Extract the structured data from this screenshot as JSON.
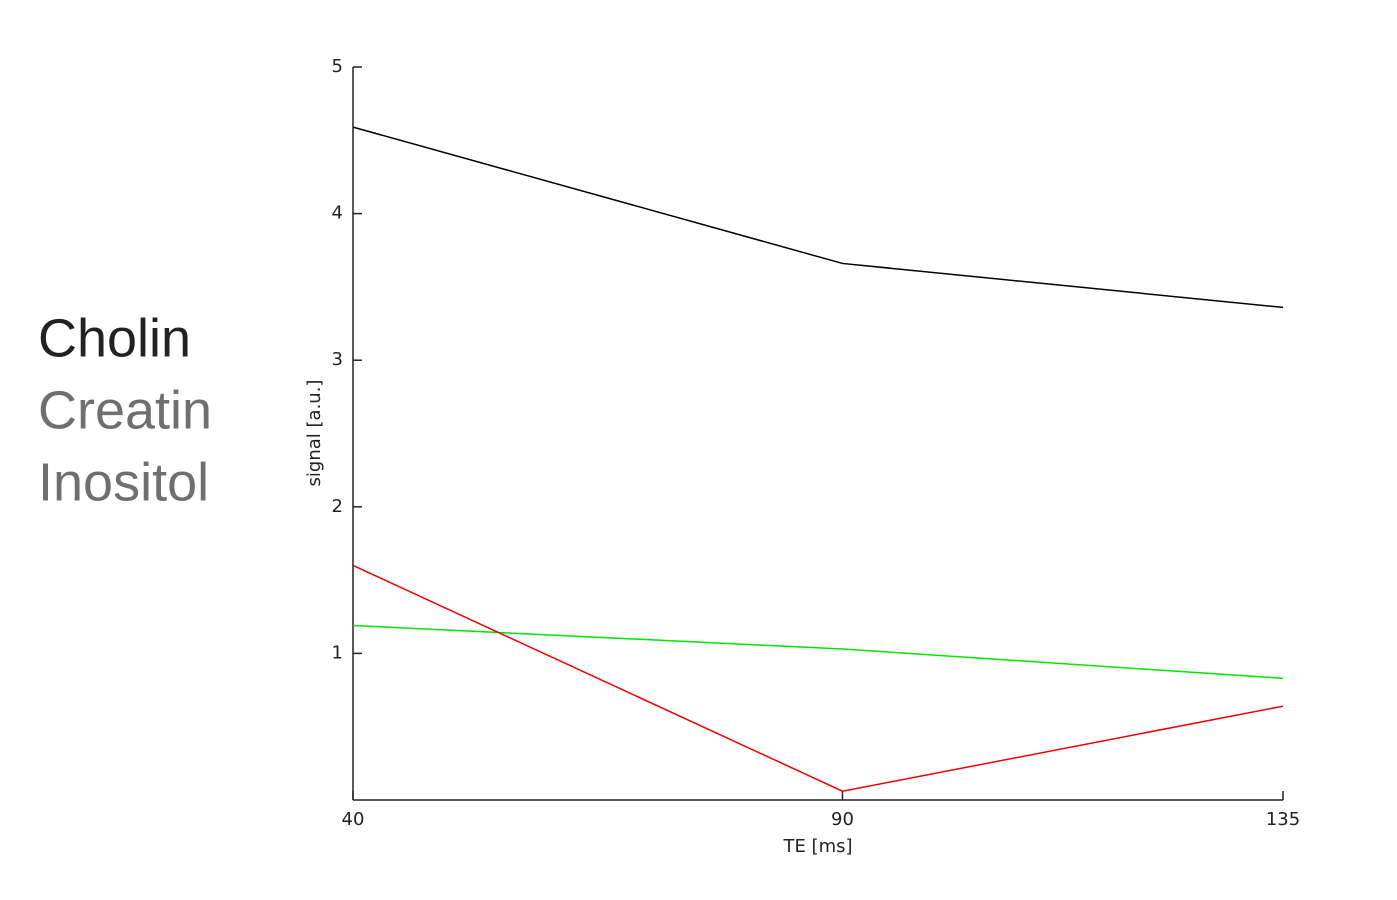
{
  "chart_data": {
    "type": "line",
    "x_label": "TE [ms]",
    "y_label": "signal [a.u.]",
    "x": [
      40,
      90,
      135
    ],
    "series": [
      {
        "name": "Cholin",
        "color": "#000000",
        "values": [
          4.59,
          3.66,
          3.36
        ]
      },
      {
        "name": "Creatin",
        "color": "#00e600",
        "values": [
          1.19,
          1.03,
          0.83
        ]
      },
      {
        "name": "Inositol",
        "color": "#ee0000",
        "values": [
          1.6,
          0.06,
          0.64
        ]
      }
    ],
    "xlim": [
      40,
      135
    ],
    "xticks": [
      40,
      90,
      135
    ],
    "ylim": [
      0,
      5
    ],
    "yticks": [
      1,
      2,
      3,
      4,
      5
    ],
    "grid": false,
    "legend": "left"
  }
}
